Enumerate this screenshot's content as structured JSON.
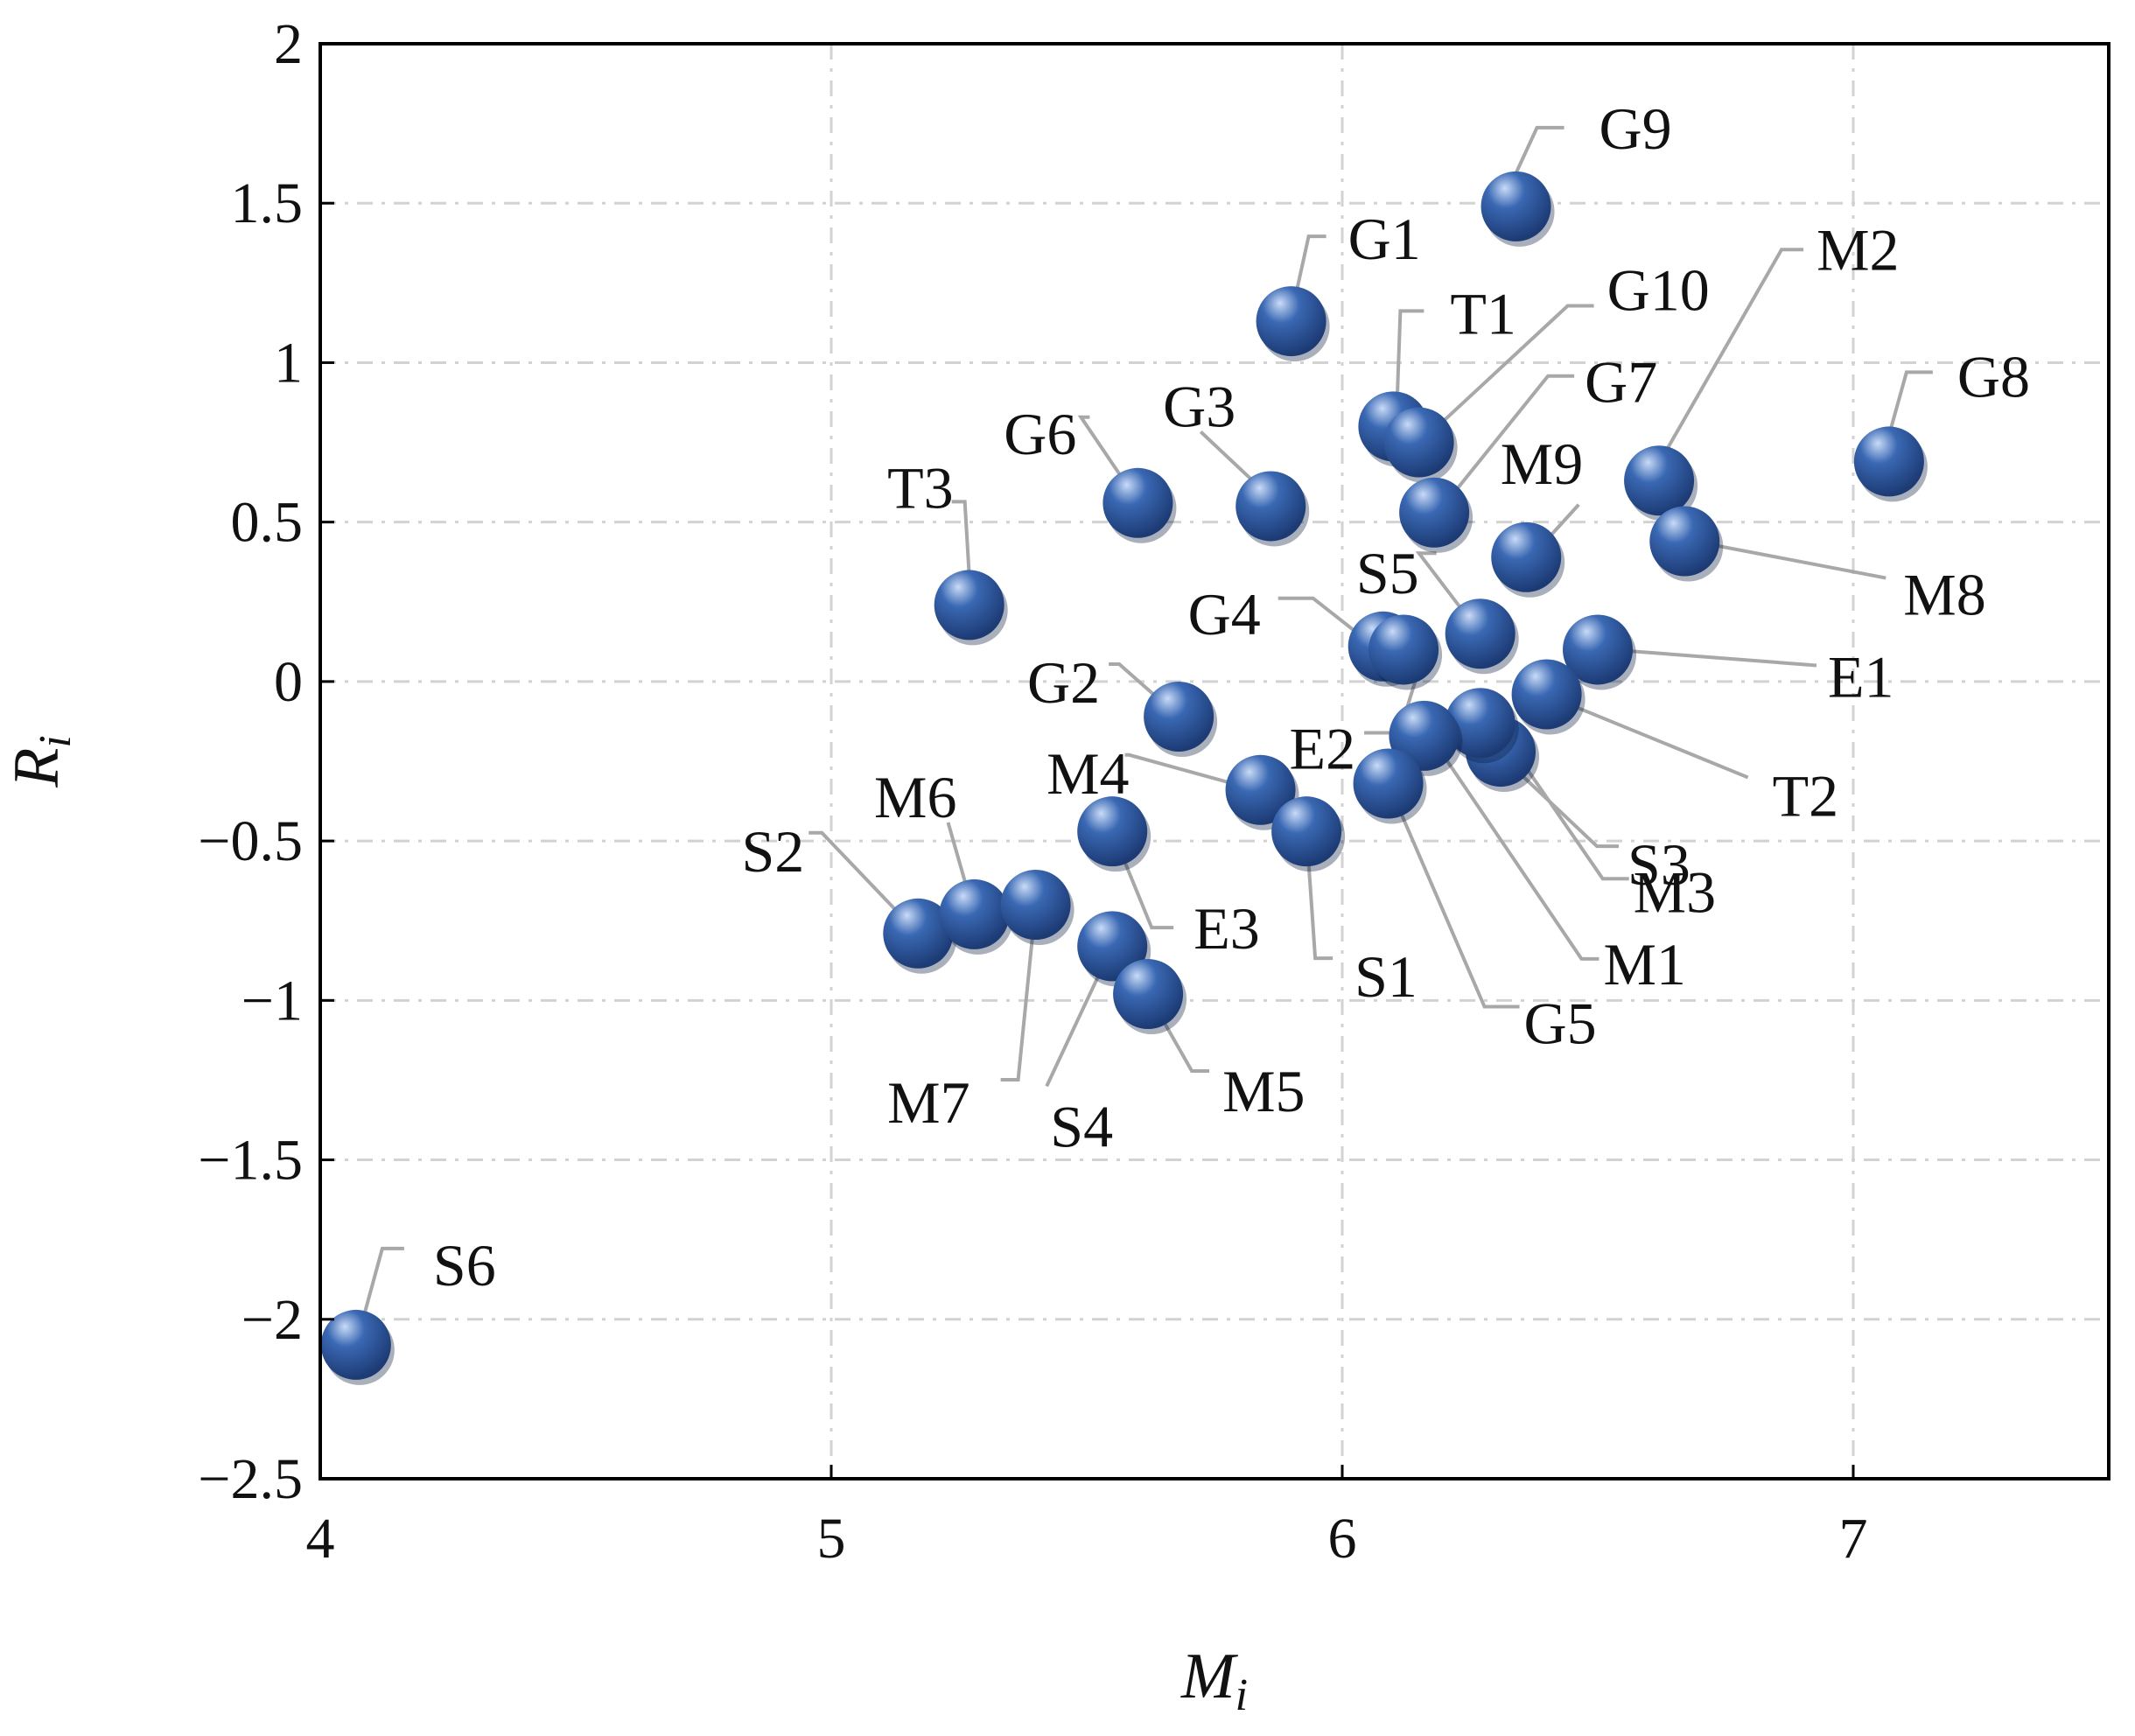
{
  "chart_data": {
    "type": "scatter",
    "title": "",
    "xlabel": {
      "main": "M",
      "sub": "i"
    },
    "ylabel": {
      "main": "R",
      "sub": "i"
    },
    "xlim": [
      4,
      7.5
    ],
    "ylim": [
      -2.5,
      2
    ],
    "xticks": [
      4,
      5,
      6,
      7
    ],
    "xtick_labels": [
      "4",
      "5",
      "6",
      "7"
    ],
    "yticks": [
      2,
      1.5,
      1,
      0.5,
      0,
      -0.5,
      -1,
      -1.5,
      -2,
      -2.5
    ],
    "ytick_labels": [
      "2",
      "1.5",
      "1",
      "0.5",
      "0",
      "−0.5",
      "−1",
      "−1.5",
      "−2",
      "−2.5"
    ],
    "grid": true,
    "grid_style": "dash-dot",
    "legend": false,
    "point_color": "#3a68b3",
    "point_highlight": "#c9dbf7",
    "point_shadow": "#1c3a73",
    "leader_color": "#a8a8a8",
    "points": [
      {
        "id": "G9",
        "x": 6.34,
        "y": 1.49
      },
      {
        "id": "G1",
        "x": 5.9,
        "y": 1.13
      },
      {
        "id": "T1",
        "x": 6.1,
        "y": 0.8
      },
      {
        "id": "G10",
        "x": 6.15,
        "y": 0.75
      },
      {
        "id": "G7",
        "x": 6.18,
        "y": 0.53
      },
      {
        "id": "M2",
        "x": 6.62,
        "y": 0.63
      },
      {
        "id": "G8",
        "x": 7.07,
        "y": 0.69
      },
      {
        "id": "M9",
        "x": 6.36,
        "y": 0.39
      },
      {
        "id": "M8",
        "x": 6.67,
        "y": 0.44
      },
      {
        "id": "G6",
        "x": 5.6,
        "y": 0.56
      },
      {
        "id": "G3",
        "x": 5.86,
        "y": 0.55
      },
      {
        "id": "T3",
        "x": 5.27,
        "y": 0.24
      },
      {
        "id": "S5",
        "x": 6.27,
        "y": 0.15
      },
      {
        "id": "G4",
        "x": 6.08,
        "y": 0.11
      },
      {
        "id": "E2",
        "x": 6.12,
        "y": 0.1
      },
      {
        "id": "E1",
        "x": 6.5,
        "y": 0.1
      },
      {
        "id": "G2",
        "x": 5.68,
        "y": -0.11
      },
      {
        "id": "T2",
        "x": 6.4,
        "y": -0.04
      },
      {
        "id": "S3",
        "x": 6.31,
        "y": -0.22
      },
      {
        "id": "M3",
        "x": 6.27,
        "y": -0.13
      },
      {
        "id": "M1",
        "x": 6.16,
        "y": -0.17
      },
      {
        "id": "G5",
        "x": 6.09,
        "y": -0.32
      },
      {
        "id": "M4",
        "x": 5.84,
        "y": -0.34
      },
      {
        "id": "S1",
        "x": 5.93,
        "y": -0.47
      },
      {
        "id": "E3",
        "x": 5.55,
        "y": -0.47
      },
      {
        "id": "S2",
        "x": 5.17,
        "y": -0.79
      },
      {
        "id": "M6",
        "x": 5.28,
        "y": -0.73
      },
      {
        "id": "M7",
        "x": 5.4,
        "y": -0.7
      },
      {
        "id": "S4",
        "x": 5.55,
        "y": -0.83
      },
      {
        "id": "M5",
        "x": 5.62,
        "y": -0.98
      },
      {
        "id": "S6",
        "x": 4.07,
        "y": -2.08
      }
    ]
  }
}
